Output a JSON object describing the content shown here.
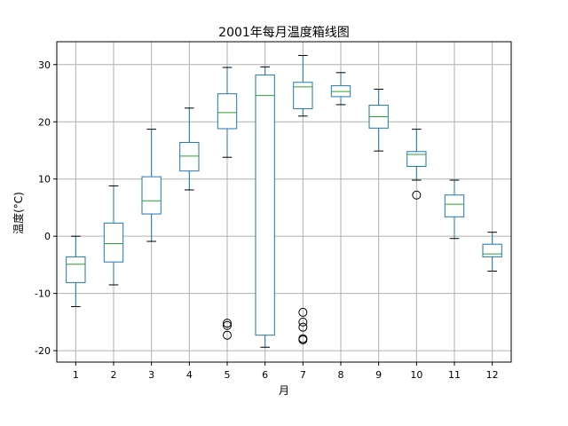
{
  "chart_data": {
    "type": "box",
    "title": "2001年每月温度箱线图",
    "xlabel": "月",
    "ylabel": "温度(°C)",
    "ylim": [
      -22,
      34
    ],
    "yticks": [
      -20,
      -10,
      0,
      10,
      20,
      30
    ],
    "grid": true,
    "categories": [
      "1",
      "2",
      "3",
      "4",
      "5",
      "6",
      "7",
      "8",
      "9",
      "10",
      "11",
      "12"
    ],
    "boxes": [
      {
        "month": "1",
        "whisker_low": -12.3,
        "q1": -8.1,
        "median": -4.9,
        "q3": -3.6,
        "whisker_high": 0.0,
        "outliers": []
      },
      {
        "month": "2",
        "whisker_low": -8.5,
        "q1": -4.5,
        "median": -1.3,
        "q3": 2.3,
        "whisker_high": 8.8,
        "outliers": []
      },
      {
        "month": "3",
        "whisker_low": -0.9,
        "q1": 3.9,
        "median": 6.2,
        "q3": 10.4,
        "whisker_high": 18.7,
        "outliers": []
      },
      {
        "month": "4",
        "whisker_low": 8.1,
        "q1": 11.4,
        "median": 14.0,
        "q3": 16.4,
        "whisker_high": 22.4,
        "outliers": []
      },
      {
        "month": "5",
        "whisker_low": 13.8,
        "q1": 18.8,
        "median": 21.6,
        "q3": 24.9,
        "whisker_high": 29.5,
        "outliers": [
          -15.2,
          -15.6,
          -17.3
        ]
      },
      {
        "month": "6",
        "whisker_low": -19.4,
        "q1": -17.3,
        "median": 24.6,
        "q3": 28.2,
        "whisker_high": 29.6,
        "outliers": []
      },
      {
        "month": "7",
        "whisker_low": 21.0,
        "q1": 22.3,
        "median": 26.1,
        "q3": 26.9,
        "whisker_high": 31.6,
        "outliers": [
          -13.3,
          -15.0,
          -15.9,
          -17.9,
          -18.1
        ]
      },
      {
        "month": "8",
        "whisker_low": 23.0,
        "q1": 24.4,
        "median": 25.3,
        "q3": 26.3,
        "whisker_high": 28.6,
        "outliers": []
      },
      {
        "month": "9",
        "whisker_low": 14.9,
        "q1": 18.9,
        "median": 20.9,
        "q3": 22.9,
        "whisker_high": 25.7,
        "outliers": []
      },
      {
        "month": "10",
        "whisker_low": 9.8,
        "q1": 12.2,
        "median": 14.3,
        "q3": 14.8,
        "whisker_high": 18.7,
        "outliers": [
          7.2
        ]
      },
      {
        "month": "11",
        "whisker_low": -0.4,
        "q1": 3.4,
        "median": 5.6,
        "q3": 7.2,
        "whisker_high": 9.8,
        "outliers": []
      },
      {
        "month": "12",
        "whisker_low": -6.1,
        "q1": -3.6,
        "median": -3.1,
        "q3": -1.4,
        "whisker_high": 0.7,
        "outliers": []
      }
    ],
    "colors": {
      "box": "#1f77b4",
      "median": "#2ca02c",
      "whisker": "#000000",
      "grid": "#b0b0b0",
      "outlier": "#000000"
    }
  }
}
